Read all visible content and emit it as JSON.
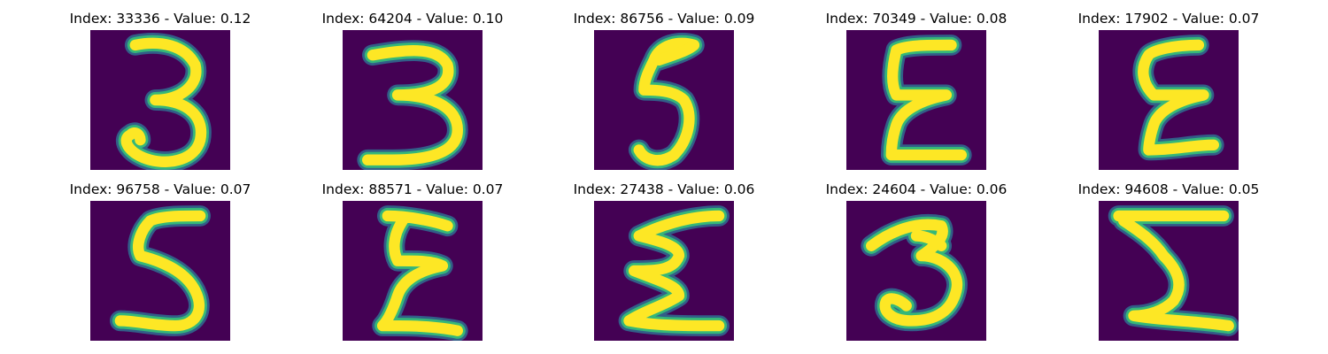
{
  "colors": {
    "background": "#440154",
    "foreground": "#fde725",
    "stroke_mid": "#35b779",
    "stroke_edge": "#31688e",
    "page": "#ffffff"
  },
  "panels": [
    {
      "title": "Index: 33336 - Value: 0.12",
      "image_alt": "handwritten digit 3",
      "glyph": "3",
      "strokes": [
        "M 9 3 C 14 2 19 3 21 7 C 22 11 18 14 13 14 C 19 14 23 17 22 22 C 21 26 16 27 12 26 C 8 25 6 22 8 21 C 9 20 10 21 10 22"
      ]
    },
    {
      "title": "Index: 64204 - Value: 0.10",
      "image_alt": "handwritten digit 3",
      "glyph": "3",
      "strokes": [
        "M 6 5 C 12 4 19 3 21 7 C 22 11 18 13 11 13 C 17 13 23 15 23 20 C 23 25 16 26 10 26 C 8 26 6 26 5 26"
      ]
    },
    {
      "title": "Index: 86756 - Value: 0.09",
      "image_alt": "handwritten digit 5",
      "glyph": "5",
      "strokes": [
        "M 20 3 C 17 2 13 3 12 6 C 11 8 10 10 10 12 C 12 12 16 12 18 14 C 20 17 19 22 16 25 C 13 27 10 26 9 24",
        "M 13 6 C 16 5 19 4 20 3"
      ]
    },
    {
      "title": "Index: 70349 - Value: 0.08",
      "image_alt": "handwritten letter E",
      "glyph": "E",
      "strokes": [
        "M 21 3 C 16 3 12 3 10 4 C 9 8 9 11 10 13 C 14 13 18 13 20 13 C 15 14 11 16 10 19 C 9 22 9 24 9 25 C 14 25 19 25 23 25"
      ]
    },
    {
      "title": "Index: 17902 - Value: 0.07",
      "image_alt": "handwritten letter E",
      "glyph": "E",
      "strokes": [
        "M 20 3 C 15 3 11 4 10 5 C 8 8 9 11 11 13 C 15 13 19 13 21 13 C 16 14 12 16 11 19 C 10 22 10 24 10 24 C 15 24 19 23 23 23"
      ]
    },
    {
      "title": "Index: 96758 - Value: 0.07",
      "image_alt": "handwritten digit 5",
      "glyph": "5",
      "strokes": [
        "M 22 3 C 18 3 14 3 12 4 C 10 6 9 9 10 11 C 14 12 19 14 21 18 C 23 22 21 25 17 25 C 13 25 9 24 6 24"
      ]
    },
    {
      "title": "Index: 88571 - Value: 0.07",
      "image_alt": "handwritten letter E",
      "glyph": "E",
      "strokes": [
        "M 9 3 C 13 3 18 4 21 5 M 12 4 C 10 7 10 10 11 12 C 15 12 18 12 20 13 C 15 14 12 16 11 19 C 10 22 9 24 8 25 C 13 25 18 25 23 26"
      ]
    },
    {
      "title": "Index: 27438 - Value: 0.06",
      "image_alt": "handwritten letter E",
      "glyph": "E",
      "strokes": [
        "M 25 3 C 19 3 13 5 9 7 C 13 8 17 9 17 11 C 16 14 12 14 8 14 C 13 16 17 17 17 19 C 14 21 10 22 7 24 C 12 25 18 25 25 25"
      ]
    },
    {
      "title": "Index: 24604 - Value: 0.06",
      "image_alt": "handwritten digit 3",
      "glyph": "3",
      "strokes": [
        "M 5 9 C 9 6 14 4 19 5 C 20 7 18 9 15 11 C 19 11 23 14 22 18 C 21 22 18 24 13 24 C 9 24 7 22 8 20 C 9 19 11 20 12 21",
        "M 14 7 C 16 7 18 8 19 9"
      ]
    },
    {
      "title": "Index: 94608 - Value: 0.05",
      "image_alt": "handwritten letter E",
      "glyph": "E",
      "strokes": [
        "M 4 3 C 12 3 19 3 25 3 M 5 4 C 8 6 11 8 13 11 C 16 14 17 17 15 20 C 13 22 10 23 7 23 C 13 24 19 24 26 25"
      ]
    }
  ]
}
